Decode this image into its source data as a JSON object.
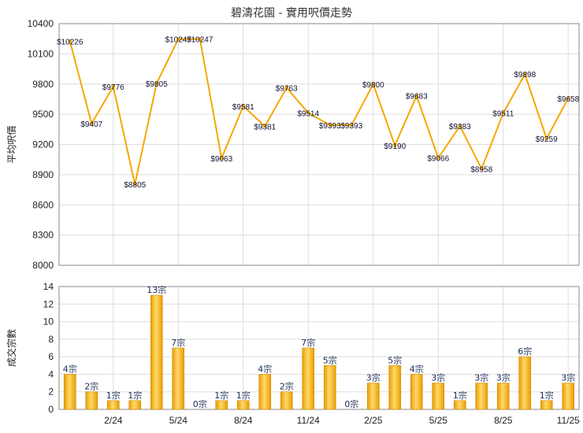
{
  "title": "碧濤花園 - 實用呎價走勢",
  "colors": {
    "line": "#f5a800",
    "bar_light": "#ffd96a",
    "bar_dark": "#e99c00",
    "grid": "#dddddd",
    "axis": "#888888"
  },
  "chart_data": [
    {
      "type": "line",
      "ylabel": "平均呎價",
      "ylim": [
        8000,
        10400
      ],
      "yticks": [
        "8000",
        "8300",
        "8600",
        "8900",
        "9200",
        "9500",
        "9800",
        "10100",
        "10400"
      ],
      "grid": true,
      "values": [
        10226,
        9407,
        9776,
        8805,
        9805,
        10247,
        10247,
        9063,
        9581,
        9381,
        9763,
        9514,
        9393,
        9393,
        9800,
        9190,
        9683,
        9066,
        9383,
        8958,
        9511,
        9898,
        9259,
        9658
      ],
      "labels": [
        "$10226",
        "$9407",
        "$9776",
        "$8805",
        "$9805",
        "$10247",
        "$10247",
        "$9063",
        "$9581",
        "$9381",
        "$9763",
        "$9514",
        "$9393",
        "$9393",
        "$9800",
        "$9190",
        "$9683",
        "$9066",
        "$9383",
        "$8958",
        "$9511",
        "$9898",
        "$9259",
        "$9658"
      ]
    },
    {
      "type": "bar",
      "ylabel": "成交宗數",
      "ylim": [
        0,
        14
      ],
      "yticks": [
        "0",
        "2",
        "4",
        "6",
        "8",
        "10",
        "12",
        "14"
      ],
      "grid": true,
      "values": [
        4,
        2,
        1,
        1,
        13,
        7,
        0,
        1,
        1,
        4,
        2,
        7,
        5,
        0,
        3,
        5,
        4,
        3,
        1,
        3,
        3,
        6,
        1,
        3
      ],
      "labels": [
        "4宗",
        "2宗",
        "1宗",
        "1宗",
        "13宗",
        "7宗",
        "0宗",
        "1宗",
        "1宗",
        "4宗",
        "2宗",
        "7宗",
        "5宗",
        "0宗",
        "3宗",
        "5宗",
        "4宗",
        "3宗",
        "1宗",
        "3宗",
        "3宗",
        "6宗",
        "1宗",
        "3宗"
      ],
      "xticks": [
        "2/24",
        "5/24",
        "8/24",
        "11/24",
        "2/25",
        "5/25",
        "8/25",
        "11/25"
      ],
      "xtick_index": [
        2,
        5,
        8,
        11,
        14,
        17,
        20,
        23
      ]
    }
  ]
}
